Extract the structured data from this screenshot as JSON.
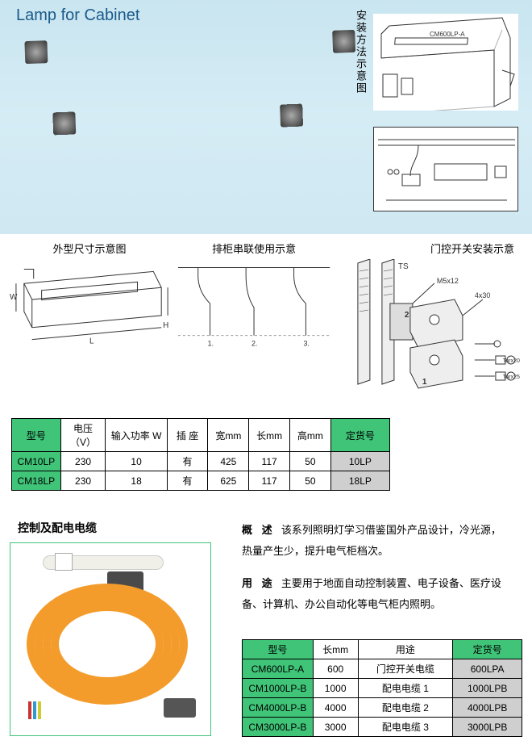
{
  "title": "Lamp for Cabinet",
  "install_label": "安装方法示意图",
  "install_model": "CM600LP-A",
  "mid": {
    "dim_label": "外型尺寸示意图",
    "chain_label": "排柜串联使用示意",
    "switch_label": "门控开关安装示意",
    "dim_W": "W",
    "dim_L": "L",
    "dim_H": "H",
    "sw_TS": "TS",
    "sw_M5": "M5x12",
    "sw_4x30": "4x30",
    "sw_torx20": "Torx20",
    "sw_torx25": "Torx25",
    "sw_n1": "1",
    "sw_n2": "2"
  },
  "table1": {
    "headers": [
      "型号",
      "电压（V）",
      "输入功率 W",
      "插 座",
      "宽mm",
      "长mm",
      "高mm",
      "定货号"
    ],
    "rows": [
      {
        "model": "CM10LP",
        "v": "230",
        "w": "10",
        "sock": "有",
        "wd": "425",
        "ln": "117",
        "ht": "50",
        "ord": "10LP"
      },
      {
        "model": "CM18LP",
        "v": "230",
        "w": "18",
        "sock": "有",
        "wd": "625",
        "ln": "117",
        "ht": "50",
        "ord": "18LP"
      }
    ]
  },
  "cable_label": "控制及配电电缆",
  "desc": {
    "l1a": "概  述",
    "l1b": "该系列照明灯学习借鉴国外产品设计，冷光源，",
    "l2": "热量产生少，提升电气柜档次。",
    "l3a": "用  途",
    "l3b": "主要用于地面自动控制装置、电子设备、医疗设",
    "l4": "备、计算机、办公自动化等电气柜内照明。"
  },
  "table2": {
    "headers": [
      "型号",
      "长mm",
      "用途",
      "定货号"
    ],
    "rows": [
      {
        "model": "CM600LP-A",
        "ln": "600",
        "use": "门控开关电缆",
        "ord": "600LPA"
      },
      {
        "model": "CM1000LP-B",
        "ln": "1000",
        "use": "配电电缆 1",
        "ord": "1000LPB"
      },
      {
        "model": "CM4000LP-B",
        "ln": "4000",
        "use": "配电电缆 2",
        "ord": "4000LPB"
      },
      {
        "model": "CM3000LP-B",
        "ln": "3000",
        "use": "配电电缆 3",
        "ord": "3000LPB"
      }
    ]
  },
  "colors": {
    "green": "#3fc478",
    "gray": "#cfcfcf",
    "orange": "#f39c2c",
    "hero_top": "#c9e5f0"
  }
}
